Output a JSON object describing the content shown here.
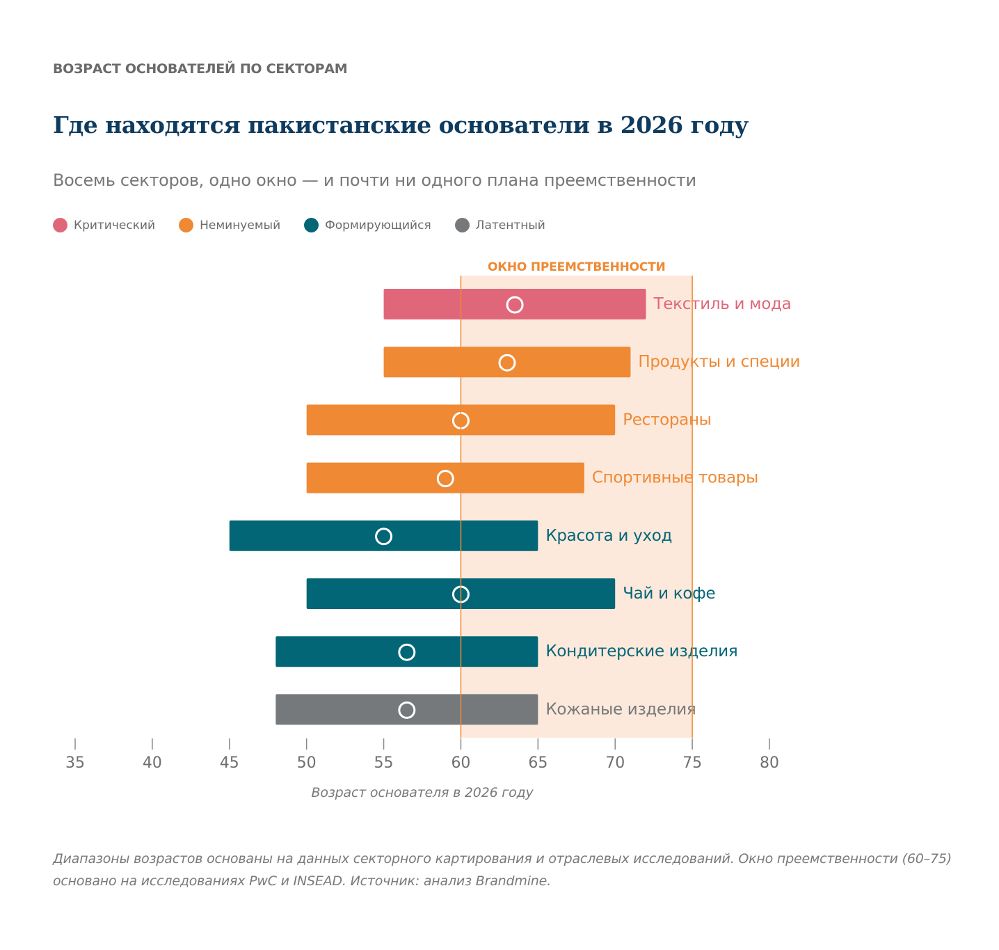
{
  "header": {
    "kicker": "ВОЗРАСТ ОСНОВАТЕЛЕЙ ПО СЕКТОРАМ",
    "title": "Где находятся пакистанские основатели в 2026 году",
    "subtitle": "Восемь секторов, одно окно — и почти ни одного плана преемственности"
  },
  "legend": [
    {
      "label": "Критический",
      "color": "#e0677a"
    },
    {
      "label": "Неминуемый",
      "color": "#ef8934"
    },
    {
      "label": "Формирующийся",
      "color": "#036676"
    },
    {
      "label": "Латентный",
      "color": "#75797b"
    }
  ],
  "chart_data": {
    "type": "range-bar",
    "xlabel": "Возраст основателя в 2026 году",
    "xlim": [
      35,
      80
    ],
    "x_ticks": [
      35,
      40,
      45,
      50,
      55,
      60,
      65,
      70,
      75,
      80
    ],
    "window": {
      "label": "ОКНО ПРЕЕМСТВЕННОСТИ",
      "start": 60,
      "end": 75,
      "fill": "#fde9dc",
      "line": "#ef8934"
    },
    "series": [
      {
        "label": "Текстиль и мода",
        "min": 55,
        "max": 72,
        "median": 63.5,
        "category": "Критический",
        "color": "#e0677a"
      },
      {
        "label": "Продукты и специи",
        "min": 55,
        "max": 71,
        "median": 63,
        "category": "Неминуемый",
        "color": "#ef8934"
      },
      {
        "label": "Рестораны",
        "min": 50,
        "max": 70,
        "median": 60,
        "category": "Неминуемый",
        "color": "#ef8934"
      },
      {
        "label": "Спортивные товары",
        "min": 50,
        "max": 68,
        "median": 59,
        "category": "Неминуемый",
        "color": "#ef8934"
      },
      {
        "label": "Красота и уход",
        "min": 45,
        "max": 65,
        "median": 55,
        "category": "Формирующийся",
        "color": "#036676"
      },
      {
        "label": "Чай и кофе",
        "min": 50,
        "max": 70,
        "median": 60,
        "category": "Формирующийся",
        "color": "#036676"
      },
      {
        "label": "Кондитерские изделия",
        "min": 48,
        "max": 65,
        "median": 56.5,
        "category": "Формирующийся",
        "color": "#036676"
      },
      {
        "label": "Кожаные изделия",
        "min": 48,
        "max": 65,
        "median": 56.5,
        "category": "Латентный",
        "color": "#75797b"
      }
    ]
  },
  "footnote": "Диапазоны возрастов основаны на данных секторного картирования и отраслевых исследований. Окно преемственности (60–75) основано на исследованиях PwC и INSEAD. Источник: анализ Brandmine."
}
